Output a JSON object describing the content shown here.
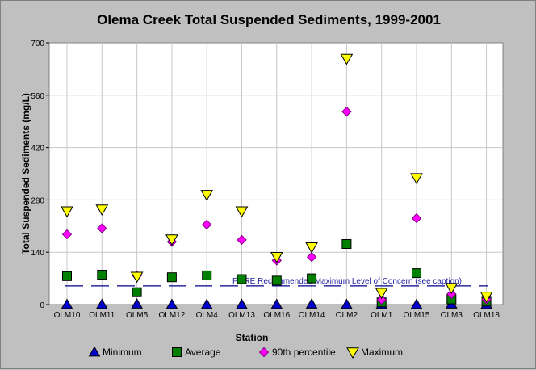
{
  "chart_data": {
    "type": "scatter",
    "title": "Olema Creek Total Suspended Sediments, 1999-2001",
    "xlabel": "Station",
    "ylabel": "Total Suspended Sediments (mg/L)",
    "ylim": [
      0,
      700
    ],
    "yticks": [
      0,
      140,
      280,
      420,
      560,
      700
    ],
    "grid": true,
    "legend_position": "bottom",
    "categories": [
      "OLM10",
      "OLM11",
      "OLM5",
      "OLM12",
      "OLM4",
      "OLM13",
      "OLM16",
      "OLM14",
      "OLM2",
      "OLM1",
      "OLM15",
      "OLM3",
      "OLM18"
    ],
    "series": [
      {
        "name": "Minimum",
        "marker": "triangle-up",
        "color": "#0000cc",
        "values": [
          0,
          0,
          1,
          0,
          0,
          0,
          0,
          1,
          0,
          0,
          0,
          1,
          0
        ]
      },
      {
        "name": "Average",
        "marker": "square",
        "color": "#008000",
        "values": [
          76,
          80,
          33,
          73,
          78,
          68,
          64,
          70,
          162,
          6,
          84,
          14,
          8
        ]
      },
      {
        "name": "90th percentile",
        "marker": "diamond",
        "color": "#ff00ff",
        "values": [
          188,
          204,
          77,
          168,
          214,
          173,
          118,
          127,
          516,
          13,
          231,
          28,
          14
        ]
      },
      {
        "name": "Maximum",
        "marker": "triangle-down",
        "color": "#ffff00",
        "values": [
          250,
          255,
          75,
          175,
          294,
          250,
          128,
          154,
          658,
          32,
          339,
          45,
          22
        ]
      }
    ],
    "reference_line": {
      "label": "PORE Recommended Maximum Level of Concern (see caption)",
      "value": 50,
      "color": "#00008b"
    }
  }
}
